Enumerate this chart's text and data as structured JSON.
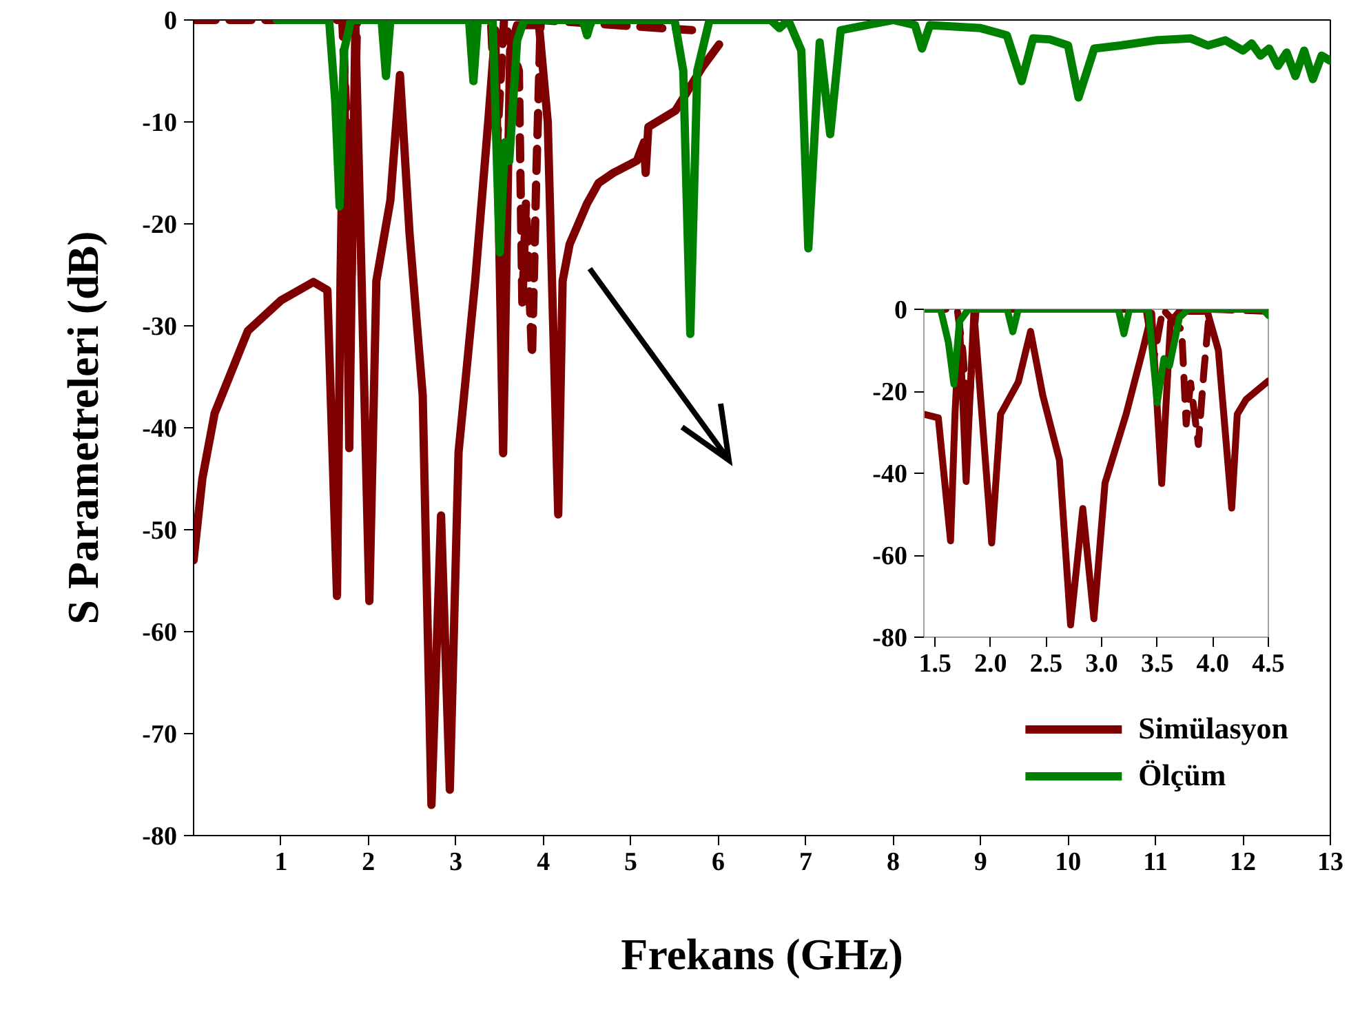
{
  "chart_data": [
    {
      "type": "line",
      "xlabel": "Frekans (GHz)",
      "ylabel": "S Parametreleri (dB)",
      "xlim": [
        0,
        13
      ],
      "ylim": [
        -80,
        0
      ],
      "xticks": [
        1,
        2,
        3,
        4,
        5,
        6,
        7,
        8,
        9,
        10,
        11,
        12,
        13
      ],
      "yticks": [
        -80,
        -70,
        -60,
        -50,
        -40,
        -30,
        -20,
        -10,
        0
      ],
      "grid": false,
      "legend": "bottom right",
      "series": [
        {
          "name": "Simülasyon",
          "color": "#7f0000",
          "line_style": "solid",
          "x": [
            0,
            0.1,
            0.24,
            0.62,
            1.0,
            1.37,
            1.53,
            1.64,
            1.68,
            1.72,
            1.78,
            1.85,
            1.92,
            2.01,
            2.09,
            2.25,
            2.36,
            2.47,
            2.62,
            2.72,
            2.83,
            2.93,
            3.03,
            3.22,
            3.37,
            3.45,
            3.54,
            3.62,
            3.7,
            3.95,
            4.05,
            4.17,
            4.22,
            4.3,
            4.5,
            4.63,
            4.8,
            5.07,
            5.15,
            5.17,
            5.2,
            5.51,
            5.82,
            6.01
          ],
          "values": [
            -53,
            -45,
            -38.6,
            -30.5,
            -27.5,
            -25.7,
            -26.5,
            -56.5,
            -25.6,
            -3,
            -42,
            -0.5,
            -25,
            -57,
            -25.6,
            -17.7,
            -5.4,
            -21,
            -36.8,
            -77,
            -48.6,
            -75.5,
            -42.4,
            -25.6,
            -9.9,
            -1,
            -42.5,
            -3,
            -0.5,
            -0.5,
            -10,
            -48.5,
            -25.6,
            -22,
            -18,
            -16,
            -15,
            -13.8,
            -12,
            -15,
            -10.5,
            -8.9,
            -4.6,
            -2.4
          ]
        },
        {
          "color": "#7f0000",
          "line_style": "dashed",
          "x": [
            0,
            1.7,
            1.75,
            1.8,
            1.83,
            1.87,
            3.4,
            3.47,
            3.55,
            3.72,
            3.76,
            3.8,
            3.87,
            3.92,
            3.97,
            5.7
          ],
          "values": [
            0,
            0,
            -10,
            -28,
            -14,
            0,
            0,
            -12,
            0,
            -5,
            -28,
            -18,
            -33,
            -15,
            0,
            -1
          ]
        },
        {
          "name": "Ölçüm",
          "color": "#008000",
          "line_style": "solid",
          "x": [
            0.95,
            1.55,
            1.62,
            1.67,
            1.72,
            1.8,
            2.15,
            2.2,
            2.25,
            3.15,
            3.2,
            3.25,
            3.42,
            3.5,
            3.56,
            3.61,
            3.7,
            3.78,
            4.45,
            4.5,
            4.55,
            5.5,
            5.6,
            5.68,
            5.76,
            5.9,
            6.6,
            6.7,
            6.8,
            6.95,
            7.03,
            7.16,
            7.28,
            7.4,
            8.0,
            8.25,
            8.33,
            8.42,
            9.0,
            9.3,
            9.47,
            9.6,
            9.79,
            10.0,
            10.12,
            10.3,
            10.6,
            11.0,
            11.4,
            11.6,
            11.8,
            12.0,
            12.1,
            12.2,
            12.3,
            12.4,
            12.5,
            12.6,
            12.7,
            12.8,
            12.9,
            13.0
          ],
          "values": [
            0,
            0,
            -8,
            -18.3,
            -3,
            0,
            0,
            -5.5,
            0,
            0,
            -6,
            0,
            0,
            -22.8,
            -12,
            -13.8,
            -2,
            0,
            0,
            -1.5,
            0,
            0,
            -5,
            -30.8,
            -5,
            0,
            0,
            -0.8,
            0,
            -3,
            -22.4,
            -2.2,
            -11.2,
            -1,
            0,
            -0.5,
            -2.8,
            -0.5,
            -0.8,
            -1.5,
            -6,
            -1.8,
            -1.9,
            -2.5,
            -7.6,
            -2.8,
            -2.5,
            -2,
            -1.8,
            -2.5,
            -2,
            -3,
            -2.3,
            -3.5,
            -2.8,
            -4.5,
            -3.2,
            -5.5,
            -3,
            -5.8,
            -3.5,
            -4
          ]
        }
      ]
    },
    {
      "type": "line",
      "xlim": [
        1.4,
        4.5
      ],
      "ylim": [
        -80,
        0
      ],
      "xticks": [
        1.5,
        {
          "value": 2,
          "label": "2.0"
        },
        2.5,
        {
          "value": 3,
          "label": "3.0"
        },
        3.5,
        {
          "value": 4,
          "label": "4.0"
        },
        4.5
      ],
      "yticks": [
        -80,
        -60,
        -40,
        -20,
        0
      ],
      "grid": false,
      "series": [
        {
          "color": "#7f0000",
          "line_style": "solid",
          "x": [
            1.4,
            1.53,
            1.64,
            1.68,
            1.72,
            1.78,
            1.85,
            1.92,
            2.01,
            2.09,
            2.25,
            2.36,
            2.47,
            2.62,
            2.72,
            2.83,
            2.93,
            3.03,
            3.22,
            3.37,
            3.45,
            3.54,
            3.62,
            3.7,
            3.95,
            4.05,
            4.17,
            4.22,
            4.3,
            4.5
          ],
          "values": [
            -25.6,
            -26.5,
            -56.5,
            -25.6,
            -3,
            -42,
            -0.5,
            -25,
            -57,
            -25.6,
            -17.7,
            -5.4,
            -21,
            -36.8,
            -77,
            -48.6,
            -75.5,
            -42.4,
            -25.6,
            -9.9,
            -1,
            -42.5,
            -3,
            -0.5,
            -0.5,
            -10,
            -48.5,
            -25.6,
            -22,
            -17.5
          ]
        },
        {
          "color": "#7f0000",
          "line_style": "dashed",
          "x": [
            1.4,
            1.7,
            1.75,
            1.8,
            1.83,
            1.87,
            3.4,
            3.47,
            3.55,
            3.72,
            3.76,
            3.8,
            3.87,
            3.92,
            3.97,
            4.5
          ],
          "values": [
            0,
            0,
            -10,
            -28,
            -14,
            0,
            0,
            -12,
            0,
            -5,
            -28,
            -18,
            -33,
            -15,
            0,
            -0.5
          ]
        },
        {
          "color": "#008000",
          "line_style": "solid",
          "x": [
            1.4,
            1.55,
            1.62,
            1.67,
            1.72,
            1.8,
            2.15,
            2.2,
            2.25,
            3.15,
            3.2,
            3.25,
            3.42,
            3.5,
            3.56,
            3.61,
            3.7,
            3.78,
            4.45,
            4.5
          ],
          "values": [
            0,
            0,
            -8,
            -18.3,
            -3,
            0,
            0,
            -5.5,
            0,
            0,
            -6,
            0,
            0,
            -22.8,
            -12,
            -13.8,
            -2,
            0,
            0,
            -1.5
          ]
        }
      ]
    }
  ]
}
